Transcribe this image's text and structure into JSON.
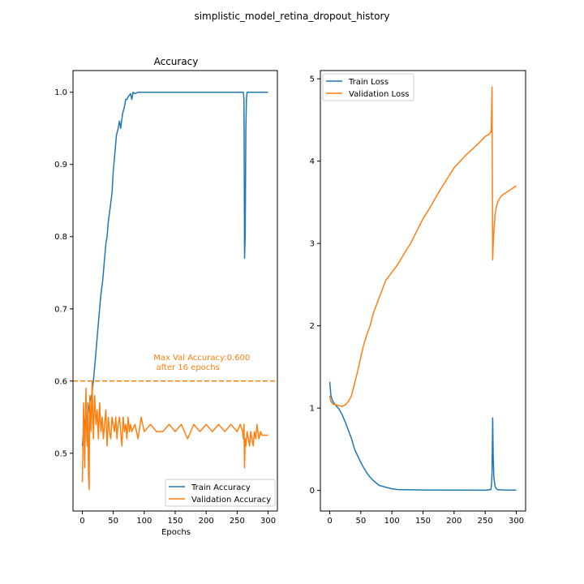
{
  "figure_title": "simplistic_model_retina_dropout_history",
  "colors": {
    "train": "#1f77b4",
    "validation": "#ff7f0e"
  },
  "chart_data": [
    {
      "type": "line",
      "title": "Accuracy",
      "xlabel": "Epochs",
      "ylabel": "",
      "xlim": [
        -15,
        315
      ],
      "ylim": [
        0.42,
        1.03
      ],
      "xticks": [
        0,
        50,
        100,
        150,
        200,
        250,
        300
      ],
      "yticks": [
        0.5,
        0.6,
        0.7,
        0.8,
        0.9,
        1.0
      ],
      "ytick_labels": [
        "0.5",
        "0.6",
        "0.7",
        "0.8",
        "0.9",
        "1.0"
      ],
      "grid": false,
      "legend_position": "lower-right",
      "series": [
        {
          "name": "Train Accuracy",
          "x": [
            0,
            2,
            5,
            8,
            12,
            15,
            18,
            20,
            22,
            25,
            28,
            30,
            33,
            35,
            38,
            40,
            42,
            45,
            48,
            50,
            52,
            55,
            58,
            60,
            62,
            65,
            68,
            70,
            72,
            75,
            78,
            80,
            82,
            85,
            90,
            100,
            120,
            150,
            200,
            250,
            260,
            261,
            262,
            263,
            264,
            265,
            266,
            268,
            270,
            280,
            290,
            300
          ],
          "y": [
            0.51,
            0.53,
            0.55,
            0.55,
            0.57,
            0.58,
            0.6,
            0.62,
            0.64,
            0.67,
            0.7,
            0.72,
            0.74,
            0.76,
            0.79,
            0.8,
            0.82,
            0.84,
            0.86,
            0.89,
            0.91,
            0.94,
            0.95,
            0.96,
            0.95,
            0.97,
            0.98,
            0.99,
            0.99,
            0.995,
            0.998,
            0.99,
            1.0,
            0.998,
            1.0,
            1.0,
            1.0,
            1.0,
            1.0,
            1.0,
            1.0,
            0.99,
            0.77,
            0.8,
            0.95,
            0.99,
            1.0,
            1.0,
            1.0,
            1.0,
            1.0,
            1.0
          ]
        },
        {
          "name": "Validation Accuracy",
          "x": [
            0,
            1,
            2,
            3,
            4,
            5,
            6,
            7,
            8,
            9,
            10,
            11,
            12,
            13,
            14,
            15,
            16,
            17,
            18,
            19,
            20,
            22,
            24,
            26,
            28,
            30,
            32,
            34,
            36,
            38,
            40,
            42,
            44,
            46,
            48,
            50,
            52,
            54,
            56,
            58,
            60,
            62,
            64,
            66,
            68,
            70,
            72,
            74,
            76,
            78,
            80,
            85,
            90,
            95,
            100,
            110,
            120,
            130,
            140,
            150,
            160,
            170,
            180,
            190,
            200,
            210,
            220,
            230,
            240,
            250,
            255,
            259,
            260,
            261,
            262,
            263,
            264,
            266,
            268,
            270,
            272,
            274,
            276,
            278,
            280,
            282,
            285,
            288,
            290,
            293,
            296,
            300
          ],
          "y": [
            0.46,
            0.5,
            0.57,
            0.53,
            0.48,
            0.55,
            0.59,
            0.53,
            0.51,
            0.57,
            0.47,
            0.45,
            0.58,
            0.55,
            0.53,
            0.57,
            0.6,
            0.55,
            0.52,
            0.56,
            0.58,
            0.54,
            0.56,
            0.52,
            0.57,
            0.53,
            0.55,
            0.52,
            0.54,
            0.56,
            0.51,
            0.55,
            0.53,
            0.52,
            0.55,
            0.54,
            0.53,
            0.55,
            0.52,
            0.54,
            0.55,
            0.53,
            0.51,
            0.55,
            0.53,
            0.54,
            0.52,
            0.55,
            0.53,
            0.54,
            0.53,
            0.54,
            0.52,
            0.55,
            0.53,
            0.54,
            0.53,
            0.53,
            0.54,
            0.53,
            0.54,
            0.52,
            0.54,
            0.53,
            0.54,
            0.53,
            0.54,
            0.53,
            0.54,
            0.53,
            0.54,
            0.53,
            0.52,
            0.54,
            0.48,
            0.52,
            0.51,
            0.53,
            0.52,
            0.51,
            0.53,
            0.52,
            0.51,
            0.53,
            0.52,
            0.54,
            0.52,
            0.53,
            0.525,
            0.525,
            0.525,
            0.525
          ]
        }
      ],
      "reference_line": {
        "y": 0.6,
        "style": "dashed"
      },
      "annotation": {
        "lines": [
          "Max Val Accuracy:0.600",
          " after 16 epochs"
        ],
        "x": 115,
        "y": 0.62
      }
    },
    {
      "type": "line",
      "title": "",
      "xlabel": "",
      "ylabel": "",
      "xlim": [
        -15,
        315
      ],
      "ylim": [
        -0.25,
        5.1
      ],
      "xticks": [
        0,
        50,
        100,
        150,
        200,
        250,
        300
      ],
      "yticks": [
        0,
        1,
        2,
        3,
        4,
        5
      ],
      "ytick_labels": [
        "0",
        "1",
        "2",
        "3",
        "4",
        "5"
      ],
      "grid": false,
      "legend_position": "top-left",
      "series": [
        {
          "name": "Train Loss",
          "x": [
            0,
            2,
            5,
            10,
            15,
            20,
            25,
            30,
            35,
            40,
            45,
            50,
            55,
            60,
            65,
            70,
            75,
            80,
            85,
            90,
            95,
            100,
            110,
            120,
            150,
            200,
            250,
            259,
            260,
            261,
            262,
            263,
            264,
            266,
            268,
            270,
            280,
            290,
            300
          ],
          "y": [
            1.32,
            1.15,
            1.08,
            1.03,
            0.99,
            0.92,
            0.83,
            0.73,
            0.63,
            0.5,
            0.42,
            0.34,
            0.27,
            0.21,
            0.16,
            0.12,
            0.09,
            0.06,
            0.05,
            0.04,
            0.03,
            0.02,
            0.01,
            0.008,
            0.005,
            0.003,
            0.002,
            0.01,
            0.05,
            0.2,
            0.88,
            0.4,
            0.15,
            0.05,
            0.02,
            0.01,
            0.005,
            0.003,
            0.003
          ]
        },
        {
          "name": "Validation Loss",
          "x": [
            0,
            2,
            5,
            10,
            15,
            20,
            25,
            30,
            35,
            40,
            45,
            50,
            55,
            60,
            65,
            70,
            75,
            80,
            85,
            90,
            95,
            100,
            110,
            120,
            130,
            140,
            150,
            160,
            170,
            180,
            190,
            200,
            210,
            220,
            230,
            240,
            250,
            255,
            259,
            260,
            261,
            262,
            263,
            264,
            266,
            268,
            270,
            275,
            280,
            290,
            300
          ],
          "y": [
            1.15,
            1.08,
            1.05,
            1.04,
            1.03,
            1.02,
            1.04,
            1.08,
            1.15,
            1.3,
            1.45,
            1.62,
            1.78,
            1.9,
            2.0,
            2.15,
            2.25,
            2.35,
            2.45,
            2.55,
            2.6,
            2.65,
            2.75,
            2.88,
            3.0,
            3.15,
            3.3,
            3.42,
            3.55,
            3.68,
            3.8,
            3.92,
            4.0,
            4.08,
            4.15,
            4.22,
            4.3,
            4.32,
            4.35,
            4.4,
            4.9,
            2.8,
            3.0,
            3.15,
            3.35,
            3.45,
            3.5,
            3.57,
            3.6,
            3.65,
            3.7
          ]
        }
      ]
    }
  ]
}
